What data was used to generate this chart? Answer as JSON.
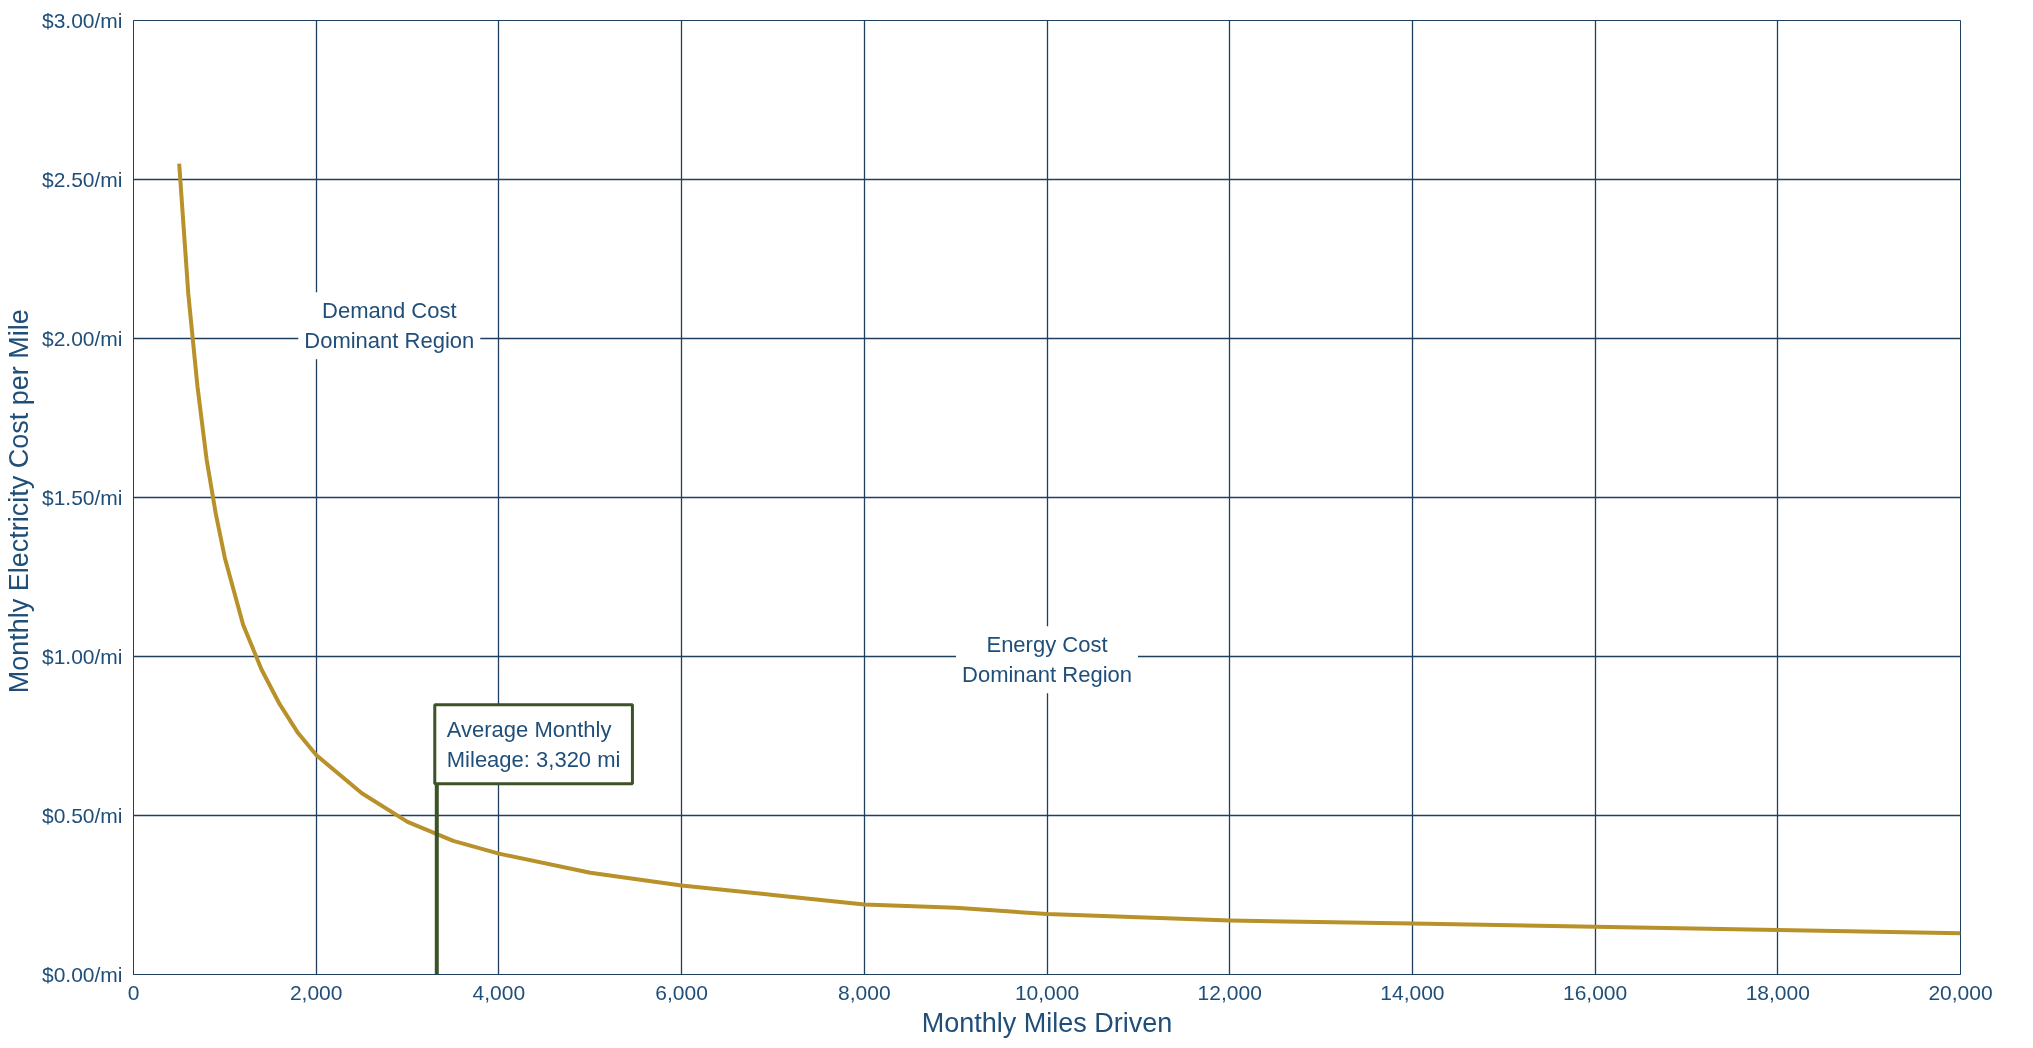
{
  "chart_data": {
    "type": "line",
    "xlabel": "Monthly Miles Driven",
    "ylabel": "Monthly Electricity  Cost per Mile",
    "x": [
      500,
      600,
      700,
      800,
      900,
      1000,
      1200,
      1400,
      1600,
      1800,
      2000,
      2500,
      3000,
      3500,
      4000,
      5000,
      6000,
      7000,
      8000,
      9000,
      10000,
      12000,
      14000,
      16000,
      18000,
      20000
    ],
    "series": [
      {
        "color": "#b8912a",
        "values": [
          2.55,
          2.14,
          1.85,
          1.62,
          1.45,
          1.31,
          1.1,
          0.96,
          0.85,
          0.76,
          0.69,
          0.57,
          0.48,
          0.42,
          0.38,
          0.32,
          0.28,
          0.25,
          0.22,
          0.21,
          0.19,
          0.17,
          0.16,
          0.15,
          0.14,
          0.13
        ]
      }
    ],
    "xlim": [
      0,
      20000
    ],
    "ylim": [
      0,
      3
    ],
    "xticks": [
      0,
      {
        "value": 2000,
        "label": "2,000"
      },
      {
        "value": 4000,
        "label": "4,000"
      },
      {
        "value": 6000,
        "label": "6,000"
      },
      {
        "value": 8000,
        "label": "8,000"
      },
      {
        "value": 10000,
        "label": "10,000"
      },
      {
        "value": 12000,
        "label": "12,000"
      },
      {
        "value": 14000,
        "label": "14,000"
      },
      {
        "value": 16000,
        "label": "16,000"
      },
      {
        "value": 18000,
        "label": "18,000"
      },
      {
        "value": 20000,
        "label": "20,000"
      }
    ],
    "yticks": [
      {
        "value": 0,
        "label": "$0.00/mi"
      },
      {
        "value": 0.5,
        "label": "$0.50/mi"
      },
      {
        "value": 1,
        "label": "$1.00/mi"
      },
      {
        "value": 1.5,
        "label": "$1.50/mi"
      },
      {
        "value": 2,
        "label": "$2.00/mi"
      },
      {
        "value": 2.5,
        "label": "$2.50/mi"
      },
      {
        "value": 3,
        "label": "$3.00/mi"
      }
    ],
    "grid": true,
    "marker": "none",
    "line_style": "solid",
    "ref_lines": [
      {
        "axis": "x",
        "value": 3320,
        "label": "Average Monthly\nMileage: 3,320 mi",
        "color": "#3d5226"
      }
    ],
    "annotations": [
      "Demand Cost\nDominant Region",
      "Energy Cost\nDominant Region"
    ]
  }
}
